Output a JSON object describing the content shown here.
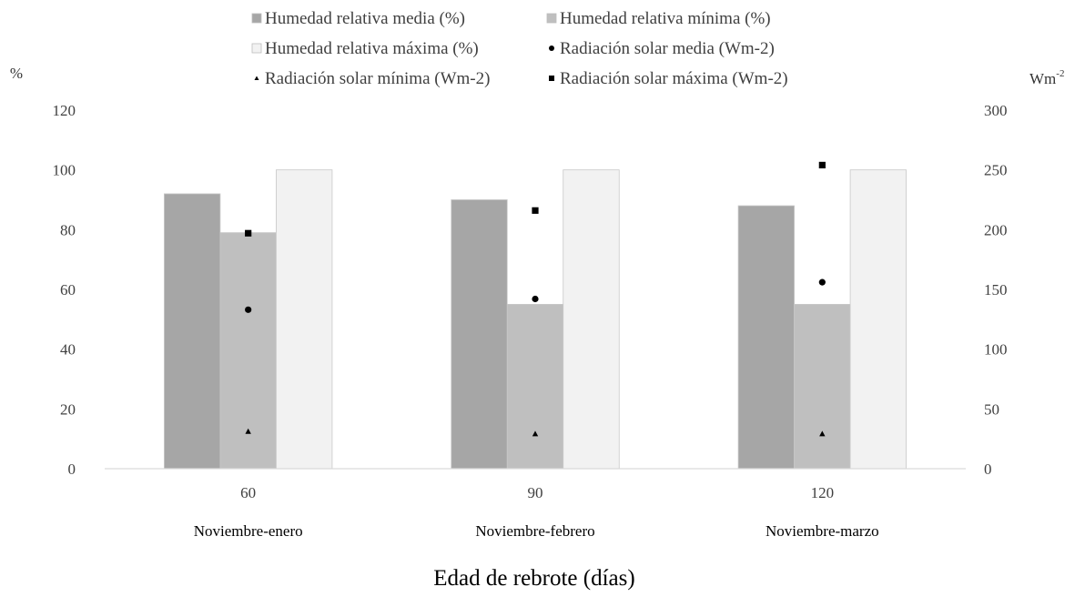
{
  "chart_data": {
    "type": "bar",
    "categories": [
      "60",
      "90",
      "120"
    ],
    "category_sublabels": [
      "Noviembre-enero",
      "Noviembre-febrero",
      "Noviembre-marzo"
    ],
    "xlabel": "Edad de rebrote (días)",
    "ylabel_left": "%",
    "ylabel_right": "Wm",
    "ylabel_right_superscript": "-2",
    "ylim_left": [
      0,
      120
    ],
    "yticks_left": [
      "0",
      "20",
      "40",
      "60",
      "80",
      "100",
      "120"
    ],
    "ylim_right": [
      0,
      300
    ],
    "yticks_right": [
      "0",
      "50",
      "100",
      "150",
      "200",
      "250",
      "300"
    ],
    "grid": false,
    "legend_position": "top",
    "bar_series": [
      {
        "name": "Humedad relativa media (%)",
        "values": [
          92,
          90,
          88
        ],
        "color": "#a6a6a6"
      },
      {
        "name": "Humedad relativa mínima (%)",
        "values": [
          79,
          55,
          55
        ],
        "color": "#bfbfbf"
      },
      {
        "name": "Humedad relativa máxima (%)",
        "values": [
          100,
          100,
          100
        ],
        "color": "#f2f2f2"
      }
    ],
    "point_series": [
      {
        "name": "Radiación solar media (Wm-2)",
        "marker": "circle",
        "values": [
          133,
          142,
          156
        ],
        "color": "#000000"
      },
      {
        "name": "Radiación solar mínima (Wm-2)",
        "marker": "triangle",
        "values": [
          31,
          29,
          29
        ],
        "color": "#000000"
      },
      {
        "name": "Radiación solar máxima (Wm-2)",
        "marker": "square",
        "values": [
          197,
          216,
          254
        ],
        "color": "#000000"
      }
    ]
  }
}
